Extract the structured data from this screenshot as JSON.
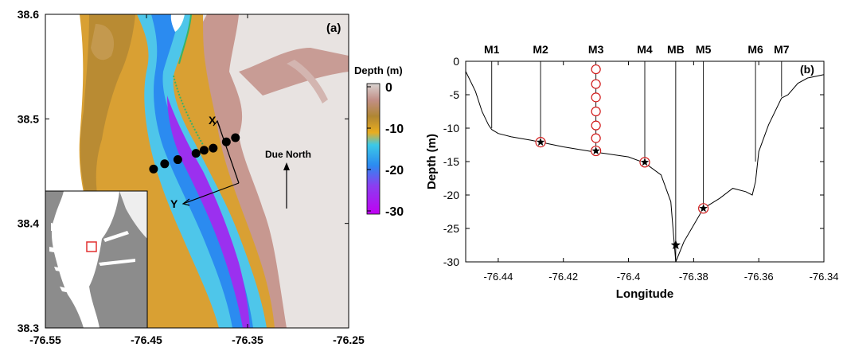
{
  "panel_a": {
    "label": "(a)",
    "lat_ticks": [
      "38.6",
      "38.5",
      "38.4",
      "38.3"
    ],
    "lon_ticks": [
      "-76.55",
      "-76.45",
      "-76.35",
      "-76.25"
    ],
    "colorbar": {
      "title": "Depth (m)",
      "ticks": [
        "0",
        "-10",
        "-20",
        "-30"
      ],
      "stops": [
        {
          "depth": 0,
          "color": "#d9d3d1"
        },
        {
          "depth": -4,
          "color": "#c28f87"
        },
        {
          "depth": -8,
          "color": "#b08633"
        },
        {
          "depth": -12,
          "color": "#e9ad1f"
        },
        {
          "depth": -15,
          "color": "#3cc9e7"
        },
        {
          "depth": -20,
          "color": "#2b8bf0"
        },
        {
          "depth": -25,
          "color": "#8a3ff0"
        },
        {
          "depth": -32,
          "color": "#c100f2"
        }
      ]
    },
    "axis_x_label": "X",
    "axis_y_label": "Y",
    "north_label": "Due North",
    "stations_lonlat": [
      [
        -76.443,
        38.452
      ],
      [
        -76.432,
        38.457
      ],
      [
        -76.419,
        38.461
      ],
      [
        -76.401,
        38.467
      ],
      [
        -76.393,
        38.47
      ],
      [
        -76.384,
        38.472
      ],
      [
        -76.371,
        38.478
      ],
      [
        -76.362,
        38.482
      ]
    ],
    "colors": {
      "land": "#ffffff",
      "shallow": "#d9a033",
      "channel": "#2fb0f0",
      "trench": "#9b30ef",
      "inset_bg": "#8c8c8c"
    }
  },
  "chart_data": {
    "type": "line",
    "label": "(b)",
    "xlabel": "Longitude",
    "ylabel": "Depth (m)",
    "xlim": [
      -76.45,
      -76.34
    ],
    "ylim": [
      -30,
      0
    ],
    "x_ticks": [
      -76.44,
      -76.42,
      -76.4,
      -76.38,
      -76.36,
      -76.34
    ],
    "x_tick_labels": [
      "-76.44",
      "-76.42",
      "-76.4",
      "-76.38",
      "-76.36",
      "-76.34"
    ],
    "y_ticks": [
      0,
      -5,
      -10,
      -15,
      -20,
      -25,
      -30
    ],
    "y_tick_labels": [
      "0",
      "-5",
      "-10",
      "-15",
      "-20",
      "-25",
      "-30"
    ],
    "bathymetry": {
      "x": [
        -76.45,
        -76.447,
        -76.445,
        -76.443,
        -76.442,
        -76.44,
        -76.436,
        -76.43,
        -76.427,
        -76.42,
        -76.41,
        -76.4,
        -76.395,
        -76.39,
        -76.387,
        -76.3855,
        -76.383,
        -76.38,
        -76.377,
        -76.372,
        -76.368,
        -76.364,
        -76.362,
        -76.361,
        -76.36,
        -76.357,
        -76.353,
        -76.351,
        -76.348,
        -76.345,
        -76.34
      ],
      "y": [
        -1.5,
        -4.5,
        -7.5,
        -9.5,
        -10.2,
        -10.8,
        -11.3,
        -11.8,
        -12.1,
        -12.8,
        -13.6,
        -14.3,
        -15.2,
        -17.0,
        -21.0,
        -30.0,
        -27.0,
        -24.5,
        -22.0,
        -20.5,
        -19.0,
        -19.5,
        -20.0,
        -18.0,
        -13.5,
        -9.5,
        -5.5,
        -5.0,
        -3.3,
        -2.5,
        -2.0
      ]
    },
    "moorings": [
      {
        "name": "M1",
        "x": -76.442,
        "bottom": -10.0
      },
      {
        "name": "M2",
        "x": -76.427,
        "bottom": -12.1
      },
      {
        "name": "M3",
        "x": -76.41,
        "bottom": -13.4
      },
      {
        "name": "M4",
        "x": -76.395,
        "bottom": -15.1
      },
      {
        "name": "MB",
        "x": -76.3855,
        "bottom": -30.0
      },
      {
        "name": "M5",
        "x": -76.377,
        "bottom": -22.0
      },
      {
        "name": "M6",
        "x": -76.361,
        "bottom": -15.0
      },
      {
        "name": "M7",
        "x": -76.353,
        "bottom": -5.3
      }
    ],
    "instruments": [
      {
        "station": "M2",
        "depth": -12.1,
        "marker": "star-circle"
      },
      {
        "station": "M3",
        "depth": -13.4,
        "marker": "star-circle"
      },
      {
        "station": "M4",
        "depth": -15.1,
        "marker": "star-circle"
      },
      {
        "station": "M5",
        "depth": -22.0,
        "marker": "star-circle"
      },
      {
        "station": "MB",
        "depth": -27.5,
        "marker": "star"
      },
      {
        "station": "M3",
        "depth": -1.2,
        "marker": "ring"
      },
      {
        "station": "M3",
        "depth": -3.4,
        "marker": "ring"
      },
      {
        "station": "M3",
        "depth": -5.4,
        "marker": "ring"
      },
      {
        "station": "M3",
        "depth": -7.5,
        "marker": "ring"
      },
      {
        "station": "M3",
        "depth": -9.6,
        "marker": "ring"
      },
      {
        "station": "M3",
        "depth": -11.5,
        "marker": "ring"
      }
    ],
    "colors": {
      "line": "#000000",
      "ring": "#d11a1a"
    }
  }
}
